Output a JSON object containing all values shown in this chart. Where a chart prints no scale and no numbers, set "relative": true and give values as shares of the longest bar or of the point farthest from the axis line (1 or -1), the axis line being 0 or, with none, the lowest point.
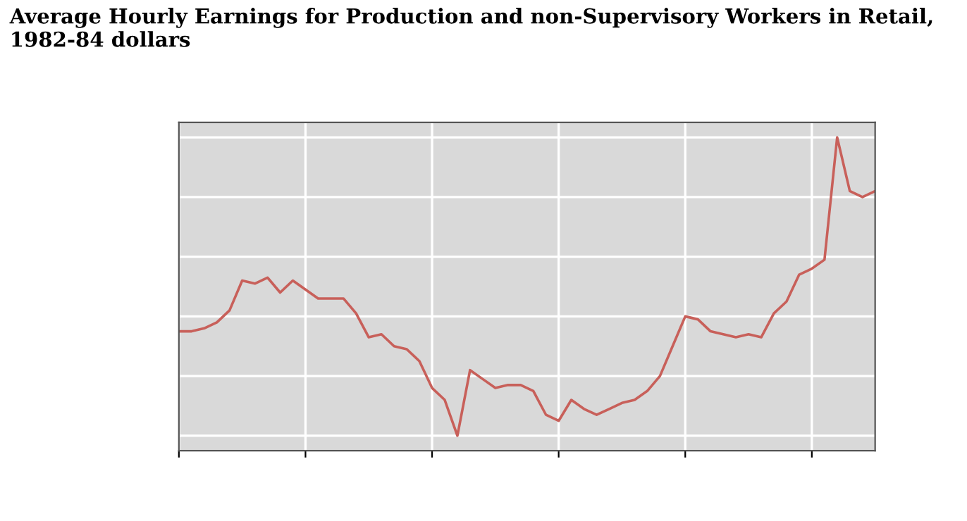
{
  "chart_data": {
    "type": "line",
    "title": "Average Hourly Earnings for Production and non-Supervisory Workers in Retail, 1982-84 dollars",
    "relative": true,
    "grid": true,
    "tick_labels": false,
    "categories": [
      null,
      null,
      null,
      null,
      null,
      null,
      null,
      null,
      null,
      null,
      null,
      null,
      null,
      null,
      null,
      null,
      null,
      null,
      null,
      null,
      null,
      null,
      null,
      null,
      null,
      null,
      null,
      null,
      null,
      null,
      null,
      null,
      null,
      null,
      null,
      null,
      null,
      null,
      null,
      null,
      null,
      null,
      null,
      null,
      null,
      null,
      null,
      null,
      null,
      null,
      null,
      null,
      null,
      null,
      null,
      null
    ],
    "series": [
      {
        "color": "#c8605a",
        "values": [
          0.35,
          0.35,
          0.36,
          0.38,
          0.42,
          0.52,
          0.51,
          0.53,
          0.48,
          0.52,
          0.49,
          0.46,
          0.46,
          0.46,
          0.41,
          0.33,
          0.34,
          0.3,
          0.29,
          0.25,
          0.16,
          0.12,
          0,
          0.22,
          0.19,
          0.16,
          0.17,
          0.17,
          0.15,
          0.07,
          0.05,
          0.12,
          0.09,
          0.07,
          0.09,
          0.11,
          0.12,
          0.15,
          0.2,
          0.3,
          0.4,
          0.39,
          0.35,
          0.34,
          0.33,
          0.34,
          0.33,
          0.41,
          0.45,
          0.54,
          0.56,
          0.59,
          1,
          0.82,
          0.8,
          0.82
        ]
      }
    ]
  }
}
